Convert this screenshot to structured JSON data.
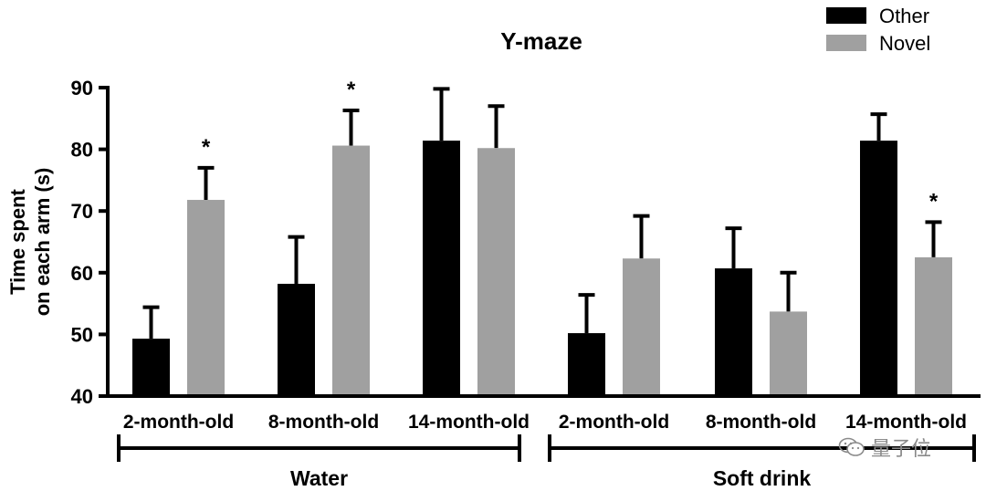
{
  "chart_data": {
    "type": "bar",
    "title": "Y-maze",
    "ylabel_lines": [
      "Time spent",
      "on each arm (s)"
    ],
    "ylim": [
      40,
      90
    ],
    "yticks": [
      40,
      50,
      60,
      70,
      80,
      90
    ],
    "categories": [
      "2-month-old",
      "8-month-old",
      "14-month-old",
      "2-month-old",
      "8-month-old",
      "14-month-old"
    ],
    "groups": [
      {
        "label": "Water",
        "categories": [
          0,
          1,
          2
        ]
      },
      {
        "label": "Soft drink",
        "categories": [
          3,
          4,
          5
        ]
      }
    ],
    "series": [
      {
        "name": "Other",
        "color": "#000000",
        "values": [
          49.3,
          58.2,
          81.4,
          50.2,
          60.7,
          81.4
        ],
        "errors": [
          5.1,
          7.6,
          8.4,
          6.2,
          6.5,
          4.3
        ]
      },
      {
        "name": "Novel",
        "color": "#a0a0a0",
        "values": [
          71.8,
          80.6,
          80.2,
          62.3,
          53.7,
          62.5
        ],
        "errors": [
          5.2,
          5.7,
          6.8,
          6.9,
          6.3,
          5.7
        ]
      }
    ],
    "annotations": [
      {
        "text": "*",
        "series": "Novel",
        "category_index": 0
      },
      {
        "text": "*",
        "series": "Novel",
        "category_index": 1
      },
      {
        "text": "*",
        "series": "Novel",
        "category_index": 5
      }
    ],
    "legend": "top-right"
  },
  "watermark": {
    "text": "量子位",
    "icon": "wechat-icon"
  }
}
